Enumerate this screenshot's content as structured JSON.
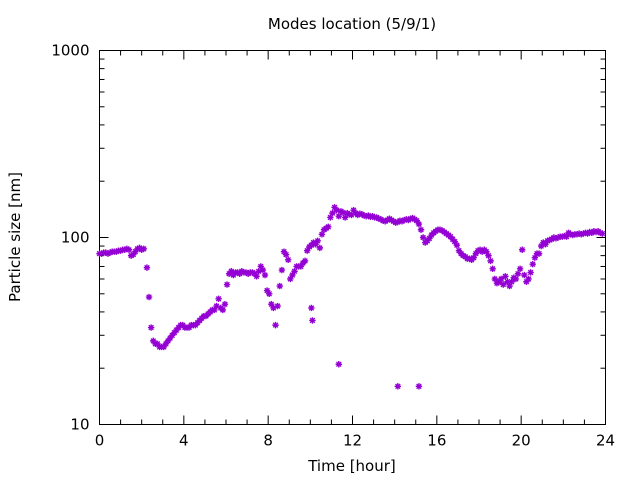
{
  "chart_data": {
    "type": "scatter",
    "title": "Modes location (5/9/1)",
    "xlabel": "Time [hour]",
    "ylabel": "Particle size [nm]",
    "xlim": [
      0,
      24
    ],
    "ylim": [
      10,
      1000
    ],
    "yscale": "log",
    "grid": false,
    "legend": "none",
    "marker": "asterisk",
    "color": "#9400d3",
    "xticks": [
      0,
      4,
      8,
      12,
      16,
      20,
      24
    ],
    "xtick_labels": [
      "0",
      "4",
      "8",
      "12",
      "16",
      "20",
      "24"
    ],
    "xminor": [
      1,
      2,
      3,
      5,
      6,
      7,
      9,
      10,
      11,
      13,
      14,
      15,
      17,
      18,
      19,
      21,
      22,
      23
    ],
    "yticks": [
      10,
      100,
      1000
    ],
    "ytick_labels": [
      "10",
      "100",
      "1000"
    ],
    "yminor": [
      20,
      30,
      40,
      50,
      60,
      70,
      80,
      90,
      200,
      300,
      400,
      500,
      600,
      700,
      800,
      900
    ],
    "series": [
      {
        "points": [
          [
            0.0,
            82
          ],
          [
            0.1,
            82
          ],
          [
            0.2,
            83
          ],
          [
            0.3,
            83
          ],
          [
            0.4,
            82
          ],
          [
            0.5,
            83
          ],
          [
            0.6,
            84
          ],
          [
            0.7,
            84
          ],
          [
            0.8,
            84
          ],
          [
            0.9,
            85
          ],
          [
            1.0,
            85
          ],
          [
            1.1,
            86
          ],
          [
            1.2,
            86
          ],
          [
            1.3,
            87
          ],
          [
            1.4,
            86
          ],
          [
            1.5,
            80
          ],
          [
            1.6,
            81
          ],
          [
            1.7,
            84
          ],
          [
            1.8,
            87
          ],
          [
            1.9,
            88
          ],
          [
            2.0,
            86
          ],
          [
            2.1,
            87
          ],
          [
            2.25,
            69
          ],
          [
            2.35,
            48
          ],
          [
            2.45,
            33
          ],
          [
            2.55,
            28
          ],
          [
            2.65,
            27
          ],
          [
            2.75,
            27
          ],
          [
            2.85,
            26
          ],
          [
            2.95,
            26
          ],
          [
            3.05,
            26
          ],
          [
            3.15,
            27
          ],
          [
            3.25,
            28
          ],
          [
            3.35,
            29
          ],
          [
            3.45,
            30
          ],
          [
            3.55,
            31
          ],
          [
            3.65,
            32
          ],
          [
            3.75,
            33
          ],
          [
            3.85,
            34
          ],
          [
            3.95,
            34
          ],
          [
            4.05,
            33
          ],
          [
            4.15,
            33
          ],
          [
            4.25,
            33
          ],
          [
            4.35,
            34
          ],
          [
            4.45,
            34
          ],
          [
            4.55,
            34
          ],
          [
            4.65,
            35
          ],
          [
            4.75,
            36
          ],
          [
            4.85,
            37
          ],
          [
            4.95,
            38
          ],
          [
            5.05,
            38
          ],
          [
            5.15,
            39
          ],
          [
            5.25,
            40
          ],
          [
            5.35,
            41
          ],
          [
            5.45,
            41
          ],
          [
            5.55,
            43
          ],
          [
            5.65,
            47
          ],
          [
            5.75,
            42
          ],
          [
            5.85,
            41
          ],
          [
            5.95,
            44
          ],
          [
            6.05,
            56
          ],
          [
            6.15,
            64
          ],
          [
            6.25,
            66
          ],
          [
            6.35,
            63
          ],
          [
            6.45,
            65
          ],
          [
            6.55,
            65
          ],
          [
            6.65,
            64
          ],
          [
            6.75,
            66
          ],
          [
            6.85,
            65
          ],
          [
            6.95,
            65
          ],
          [
            7.05,
            64
          ],
          [
            7.15,
            65
          ],
          [
            7.25,
            65
          ],
          [
            7.35,
            64
          ],
          [
            7.45,
            62
          ],
          [
            7.55,
            66
          ],
          [
            7.65,
            70
          ],
          [
            7.75,
            67
          ],
          [
            7.85,
            63
          ],
          [
            7.95,
            52
          ],
          [
            8.05,
            50
          ],
          [
            8.15,
            44
          ],
          [
            8.25,
            42
          ],
          [
            8.35,
            34
          ],
          [
            8.45,
            43
          ],
          [
            8.55,
            55
          ],
          [
            8.65,
            67
          ],
          [
            8.75,
            84
          ],
          [
            8.85,
            81
          ],
          [
            8.95,
            76
          ],
          [
            9.05,
            60
          ],
          [
            9.15,
            63
          ],
          [
            9.25,
            66
          ],
          [
            9.35,
            70
          ],
          [
            9.45,
            70
          ],
          [
            9.55,
            70
          ],
          [
            9.65,
            73
          ],
          [
            9.75,
            75
          ],
          [
            9.85,
            85
          ],
          [
            9.95,
            89
          ],
          [
            10.05,
            91
          ],
          [
            10.15,
            94
          ],
          [
            10.25,
            92
          ],
          [
            10.35,
            96
          ],
          [
            10.45,
            88
          ],
          [
            10.55,
            104
          ],
          [
            10.65,
            110
          ],
          [
            10.75,
            112
          ],
          [
            10.85,
            114
          ],
          [
            10.95,
            128
          ],
          [
            11.05,
            135
          ],
          [
            11.15,
            145
          ],
          [
            11.25,
            140
          ],
          [
            11.35,
            130
          ],
          [
            11.45,
            138
          ],
          [
            11.55,
            136
          ],
          [
            11.65,
            128
          ],
          [
            11.75,
            135
          ],
          [
            11.85,
            133
          ],
          [
            11.95,
            132
          ],
          [
            12.05,
            140
          ],
          [
            12.15,
            135
          ],
          [
            12.25,
            132
          ],
          [
            12.35,
            134
          ],
          [
            12.45,
            133
          ],
          [
            12.55,
            131
          ],
          [
            12.65,
            130
          ],
          [
            12.75,
            131
          ],
          [
            12.85,
            129
          ],
          [
            12.95,
            130
          ],
          [
            13.05,
            128
          ],
          [
            13.15,
            128
          ],
          [
            13.25,
            126
          ],
          [
            13.35,
            125
          ],
          [
            13.45,
            123
          ],
          [
            13.55,
            122
          ],
          [
            13.65,
            124
          ],
          [
            13.75,
            126
          ],
          [
            13.85,
            124
          ],
          [
            13.95,
            122
          ],
          [
            14.05,
            120
          ],
          [
            14.15,
            121
          ],
          [
            14.25,
            123
          ],
          [
            14.35,
            122
          ],
          [
            14.45,
            124
          ],
          [
            14.55,
            125
          ],
          [
            14.65,
            124
          ],
          [
            14.75,
            126
          ],
          [
            14.85,
            127
          ],
          [
            14.95,
            125
          ],
          [
            15.05,
            123
          ],
          [
            15.15,
            118
          ],
          [
            15.25,
            110
          ],
          [
            15.35,
            100
          ],
          [
            15.45,
            94
          ],
          [
            15.55,
            96
          ],
          [
            15.65,
            99
          ],
          [
            15.75,
            103
          ],
          [
            15.85,
            106
          ],
          [
            15.95,
            108
          ],
          [
            16.05,
            110
          ],
          [
            16.15,
            110
          ],
          [
            16.25,
            109
          ],
          [
            16.35,
            107
          ],
          [
            16.45,
            105
          ],
          [
            16.55,
            103
          ],
          [
            16.65,
            101
          ],
          [
            16.75,
            98
          ],
          [
            16.85,
            95
          ],
          [
            16.95,
            91
          ],
          [
            17.05,
            85
          ],
          [
            17.15,
            82
          ],
          [
            17.25,
            80
          ],
          [
            17.35,
            79
          ],
          [
            17.45,
            77
          ],
          [
            17.55,
            77
          ],
          [
            17.65,
            76
          ],
          [
            17.75,
            78
          ],
          [
            17.85,
            82
          ],
          [
            17.95,
            85
          ],
          [
            18.05,
            86
          ],
          [
            18.15,
            84
          ],
          [
            18.25,
            86
          ],
          [
            18.35,
            84
          ],
          [
            18.45,
            80
          ],
          [
            18.55,
            75
          ],
          [
            18.65,
            68
          ],
          [
            18.75,
            60
          ],
          [
            18.85,
            57
          ],
          [
            18.95,
            58
          ],
          [
            19.05,
            60
          ],
          [
            19.15,
            56
          ],
          [
            19.25,
            62
          ],
          [
            19.35,
            58
          ],
          [
            19.45,
            55
          ],
          [
            19.55,
            58
          ],
          [
            19.65,
            61
          ],
          [
            19.75,
            60
          ],
          [
            19.85,
            64
          ],
          [
            19.95,
            68
          ],
          [
            20.05,
            86
          ],
          [
            20.15,
            63
          ],
          [
            20.25,
            58
          ],
          [
            20.35,
            60
          ],
          [
            20.45,
            65
          ],
          [
            20.55,
            72
          ],
          [
            20.65,
            78
          ],
          [
            20.75,
            82
          ],
          [
            20.85,
            82
          ],
          [
            20.95,
            90
          ],
          [
            21.05,
            94
          ],
          [
            21.15,
            92
          ],
          [
            21.25,
            96
          ],
          [
            21.35,
            97
          ],
          [
            21.45,
            98
          ],
          [
            21.55,
            100
          ],
          [
            21.65,
            99
          ],
          [
            21.75,
            100
          ],
          [
            21.85,
            101
          ],
          [
            21.95,
            101
          ],
          [
            22.05,
            102
          ],
          [
            22.15,
            101
          ],
          [
            22.25,
            106
          ],
          [
            22.35,
            104
          ],
          [
            22.45,
            103
          ],
          [
            22.55,
            104
          ],
          [
            22.65,
            104
          ],
          [
            22.75,
            105
          ],
          [
            22.85,
            104
          ],
          [
            22.95,
            105
          ],
          [
            23.05,
            106
          ],
          [
            23.15,
            105
          ],
          [
            23.25,
            107
          ],
          [
            23.35,
            106
          ],
          [
            23.45,
            108
          ],
          [
            23.55,
            107
          ],
          [
            23.65,
            108
          ],
          [
            23.75,
            106
          ],
          [
            23.85,
            105
          ],
          [
            10.05,
            42
          ],
          [
            10.1,
            36
          ],
          [
            11.35,
            21
          ],
          [
            14.15,
            16
          ],
          [
            15.15,
            16
          ]
        ]
      }
    ]
  }
}
